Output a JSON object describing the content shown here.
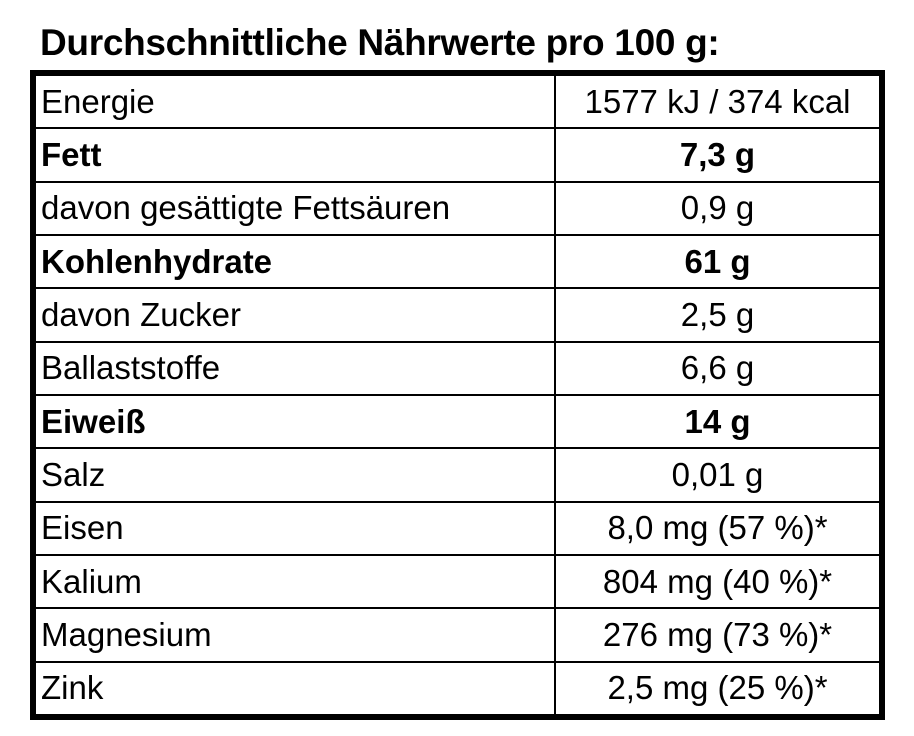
{
  "title": "Durchschnittliche Nährwerte pro 100 g:",
  "rows": [
    {
      "label": "Energie",
      "value": "1577 kJ / 374 kcal",
      "bold": false
    },
    {
      "label": "Fett",
      "value": "7,3 g",
      "bold": true
    },
    {
      "label": "davon gesättigte Fettsäuren",
      "value": "0,9 g",
      "bold": false
    },
    {
      "label": "Kohlenhydrate",
      "value": "61 g",
      "bold": true
    },
    {
      "label": "davon Zucker",
      "value": "2,5 g",
      "bold": false
    },
    {
      "label": "Ballaststoffe",
      "value": "6,6 g",
      "bold": false
    },
    {
      "label": "Eiweiß",
      "value": "14 g",
      "bold": true
    },
    {
      "label": "Salz",
      "value": "0,01 g",
      "bold": false
    },
    {
      "label": "Eisen",
      "value": "8,0 mg (57 %)*",
      "bold": false
    },
    {
      "label": "Kalium",
      "value": "804 mg (40 %)*",
      "bold": false
    },
    {
      "label": "Magnesium",
      "value": "276 mg (73 %)*",
      "bold": false
    },
    {
      "label": "Zink",
      "value": "2,5 mg (25 %)*",
      "bold": false
    }
  ]
}
